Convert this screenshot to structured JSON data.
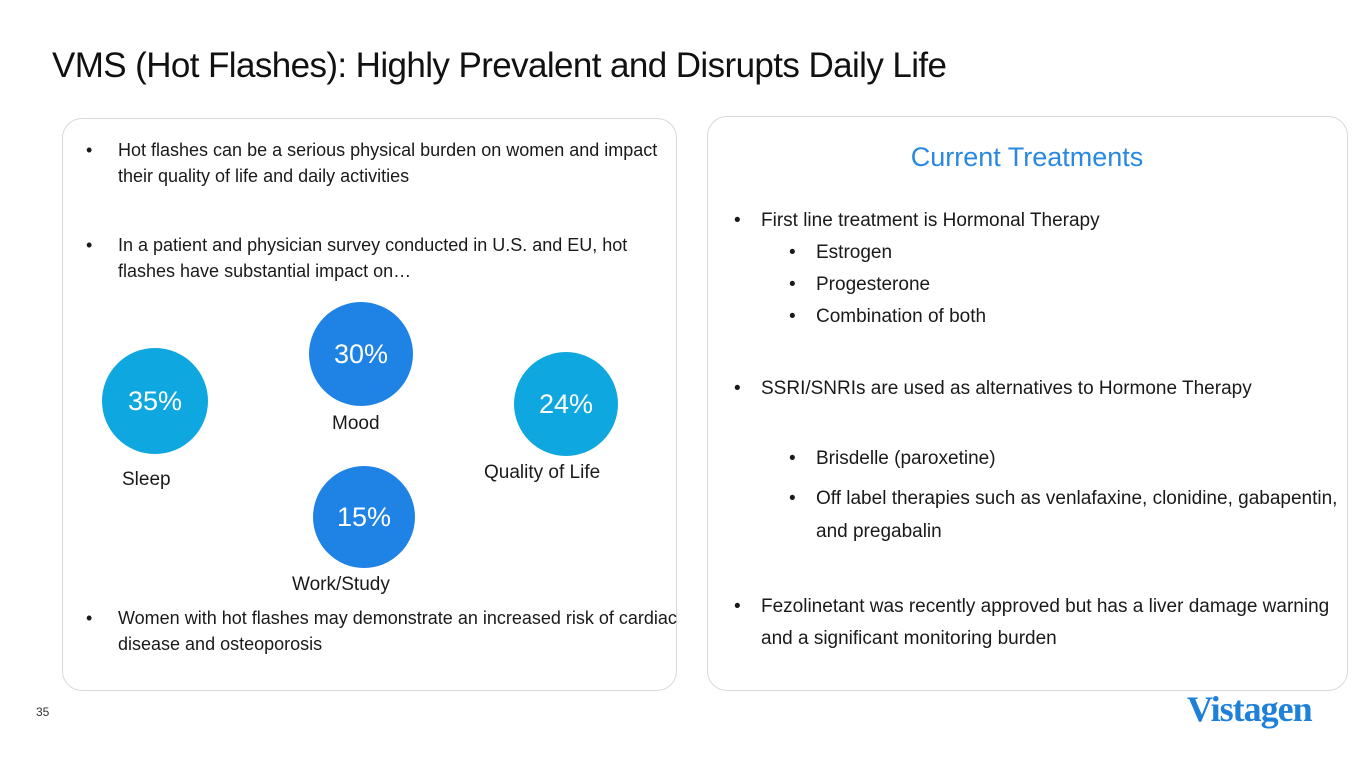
{
  "title": "VMS (Hot Flashes): Highly Prevalent and Disrupts Daily Life",
  "left_panel": {
    "bullets": [
      "Hot flashes can be a serious physical burden on women and impact their quality of life and daily activities",
      "In a patient and physician survey conducted in U.S. and EU, hot flashes have substantial impact on…",
      "Women with hot flashes may demonstrate an increased risk of cardiac disease and osteoporosis"
    ],
    "impacts": [
      {
        "value": "35%",
        "label": "Sleep",
        "color": "#0fa7df"
      },
      {
        "value": "30%",
        "label": "Mood",
        "color": "#1f83e6"
      },
      {
        "value": "24%",
        "label": "Quality of Life",
        "color": "#0fa7df"
      },
      {
        "value": "15%",
        "label": "Work/Study",
        "color": "#1f83e6"
      }
    ]
  },
  "right_panel": {
    "heading": "Current Treatments",
    "b1": "First line treatment is Hormonal Therapy",
    "b1_sub": [
      "Estrogen",
      "Progesterone",
      "Combination of both"
    ],
    "b2": "SSRI/SNRIs are used as alternatives to Hormone Therapy",
    "b2_sub": [
      "Brisdelle (paroxetine)",
      "Off label therapies such as venlafaxine, clonidine, gabapentin, and pregabalin"
    ],
    "b3": "Fezolinetant was recently approved but has a liver damage warning and a significant monitoring burden"
  },
  "page_number": "35",
  "logo": "Vistagen"
}
